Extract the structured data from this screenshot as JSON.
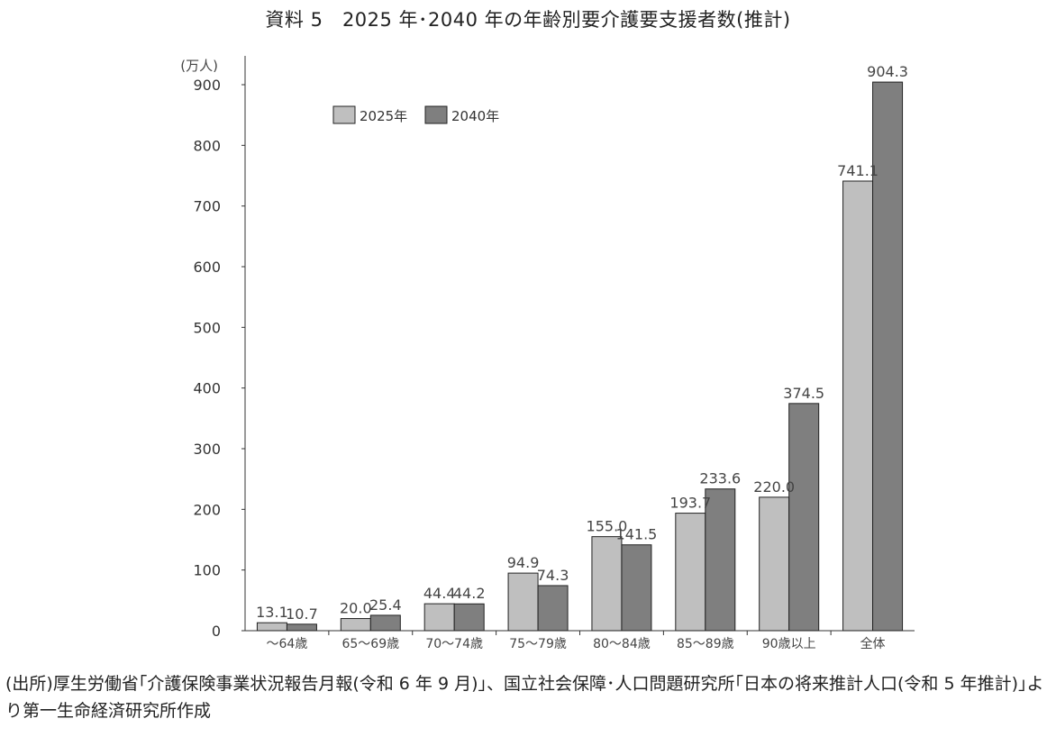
{
  "chart_data": {
    "type": "bar",
    "title": "資料 5　2025 年･2040 年の年齢別要介護要支援者数(推計)",
    "unit_label": "(万人)",
    "categories": [
      "～64歳",
      "65～69歳",
      "70～74歳",
      "75～79歳",
      "80～84歳",
      "85～89歳",
      "90歳以上",
      "全体"
    ],
    "series": [
      {
        "name": "2025年",
        "values": [
          13.1,
          20.0,
          44.4,
          94.9,
          155.0,
          193.7,
          220.0,
          741.1
        ],
        "color": "#bfbfbf"
      },
      {
        "name": "2040年",
        "values": [
          10.7,
          25.4,
          44.2,
          74.3,
          141.5,
          233.6,
          374.5,
          904.3
        ],
        "color": "#7f7f7f"
      }
    ],
    "ylim": [
      0,
      900
    ],
    "yticks": [
      0,
      100,
      200,
      300,
      400,
      500,
      600,
      700,
      800,
      900
    ],
    "grid": false,
    "legend_position": "top-left"
  },
  "source_note": "(出所)厚生労働省｢介護保険事業状況報告月報(令和 6 年 9 月)｣、国立社会保障･人口問題研究所｢日本の将来推計人口(令和 5 年推計)｣より第一生命経済研究所作成"
}
